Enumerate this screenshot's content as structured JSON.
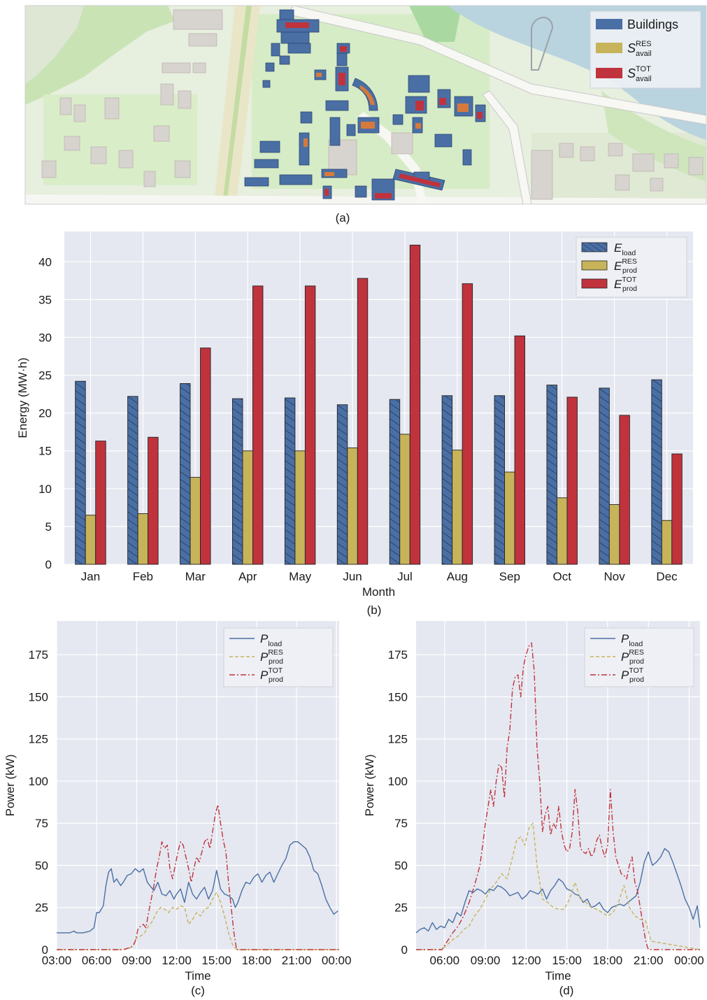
{
  "panels": {
    "a": {
      "caption": "(a)",
      "legend": [
        {
          "label": "Buildings",
          "color": "#4a6fa5"
        },
        {
          "base": "S",
          "sup": "RES",
          "sub": "avail",
          "color": "#c7b35a"
        },
        {
          "base": "S",
          "sup": "TOT",
          "sub": "avail",
          "color": "#c0333d"
        }
      ]
    },
    "b": {
      "caption": "(b)"
    },
    "c": {
      "caption": "(c)"
    },
    "d": {
      "caption": "(d)"
    }
  },
  "chart_data": [
    {
      "id": "b",
      "type": "bar",
      "xlabel": "Month",
      "ylabel": "Energy (MW·h)",
      "ylim": [
        0,
        44
      ],
      "yticks": [
        0,
        5,
        10,
        15,
        20,
        25,
        30,
        35,
        40
      ],
      "categories": [
        "Jan",
        "Feb",
        "Mar",
        "Apr",
        "May",
        "Jun",
        "Jul",
        "Aug",
        "Sep",
        "Oct",
        "Nov",
        "Dec"
      ],
      "grid": true,
      "legend_position": "top-right",
      "series": [
        {
          "name": "E_load",
          "base": "E",
          "sub": "load",
          "sup": "",
          "color": "#4a6fa5",
          "hatch": true,
          "values": [
            24.2,
            22.2,
            23.9,
            21.9,
            22.0,
            21.1,
            21.8,
            22.3,
            22.3,
            23.7,
            23.3,
            24.4
          ]
        },
        {
          "name": "E_prod^RES",
          "base": "E",
          "sub": "prod",
          "sup": "RES",
          "color": "#c7b35a",
          "hatch": false,
          "values": [
            6.5,
            6.7,
            11.5,
            15.0,
            15.0,
            15.4,
            17.2,
            15.1,
            12.2,
            8.8,
            7.9,
            5.8
          ]
        },
        {
          "name": "E_prod^TOT",
          "base": "E",
          "sub": "prod",
          "sup": "TOT",
          "color": "#c0333d",
          "hatch": false,
          "values": [
            16.3,
            16.8,
            28.6,
            36.8,
            36.8,
            37.8,
            42.2,
            37.1,
            30.2,
            22.1,
            19.7,
            14.6
          ]
        }
      ]
    },
    {
      "id": "c",
      "type": "line",
      "xlabel": "Time",
      "ylabel": "Power (kW)",
      "xlim": [
        3,
        24.2
      ],
      "ylim": [
        0,
        195
      ],
      "yticks": [
        0,
        25,
        50,
        75,
        100,
        125,
        150,
        175
      ],
      "xticks": [
        3,
        6,
        9,
        12,
        15,
        18,
        21,
        24
      ],
      "xticklabels": [
        "03:00",
        "06:00",
        "09:00",
        "12:00",
        "15:00",
        "18:00",
        "21:00",
        "00:00"
      ],
      "grid": true,
      "legend_position": "top-right",
      "series": [
        {
          "name": "P_load",
          "base": "P",
          "sub": "load",
          "sup": "",
          "color": "#4a6fa5",
          "style": "solid",
          "x": [
            3,
            3.5,
            4,
            4.3,
            4.5,
            5,
            5.5,
            5.8,
            6,
            6.2,
            6.5,
            6.7,
            6.9,
            7.1,
            7.3,
            7.5,
            7.8,
            8,
            8.3,
            8.6,
            8.9,
            9.2,
            9.5,
            9.8,
            10,
            10.3,
            10.6,
            10.9,
            11.2,
            11.5,
            11.8,
            12,
            12.3,
            12.6,
            12.9,
            13.2,
            13.5,
            13.8,
            14.1,
            14.4,
            14.7,
            15,
            15.3,
            15.6,
            15.9,
            16.2,
            16.4,
            16.6,
            16.9,
            17.2,
            17.5,
            17.8,
            18.1,
            18.4,
            18.7,
            19,
            19.3,
            19.6,
            19.9,
            20.2,
            20.5,
            20.8,
            21.1,
            21.4,
            21.7,
            22,
            22.3,
            22.6,
            22.9,
            23.2,
            23.5,
            23.8,
            24.1
          ],
          "y": [
            10,
            10,
            10,
            11,
            10,
            10,
            11,
            13,
            22,
            22,
            26,
            38,
            46,
            48,
            40,
            42,
            38,
            40,
            44,
            45,
            48,
            46,
            48,
            40,
            38,
            35,
            40,
            33,
            32,
            35,
            30,
            33,
            36,
            28,
            40,
            33,
            30,
            34,
            37,
            30,
            35,
            47,
            36,
            33,
            32,
            30,
            25,
            28,
            35,
            40,
            39,
            43,
            45,
            40,
            44,
            46,
            40,
            45,
            50,
            54,
            62,
            64,
            64,
            62,
            60,
            55,
            47,
            45,
            38,
            30,
            25,
            21,
            23
          ]
        },
        {
          "name": "P_prod^RES",
          "base": "P",
          "sub": "prod",
          "sup": "RES",
          "color": "#c7b35a",
          "style": "dashed",
          "x": [
            3,
            8,
            8.5,
            8.8,
            9,
            9.3,
            9.6,
            9.9,
            10.2,
            10.5,
            10.8,
            11.1,
            11.4,
            11.7,
            12,
            12.3,
            12.6,
            12.9,
            13.2,
            13.5,
            13.8,
            14.1,
            14.4,
            14.7,
            15,
            15.3,
            15.6,
            15.9,
            16.2,
            16.5,
            17,
            24.2
          ],
          "y": [
            0,
            0,
            1,
            3,
            7,
            8,
            10,
            14,
            17,
            22,
            25,
            24,
            22,
            25,
            24,
            26,
            25,
            15,
            18,
            22,
            20,
            24,
            25,
            30,
            34,
            28,
            20,
            10,
            3,
            0,
            0,
            0
          ]
        },
        {
          "name": "P_prod^TOT",
          "base": "P",
          "sub": "prod",
          "sup": "TOT",
          "color": "#c0333d",
          "style": "dashdot",
          "x": [
            3,
            8,
            8.4,
            8.7,
            8.9,
            9.1,
            9.3,
            9.5,
            9.7,
            9.9,
            10.1,
            10.3,
            10.5,
            10.7,
            10.9,
            11.1,
            11.3,
            11.5,
            11.7,
            11.9,
            12.1,
            12.3,
            12.5,
            12.7,
            12.9,
            13.1,
            13.3,
            13.5,
            13.7,
            13.9,
            14.1,
            14.3,
            14.5,
            14.7,
            14.9,
            15.1,
            15.3,
            15.5,
            15.7,
            15.9,
            16.1,
            16.3,
            16.5,
            17,
            24.2
          ],
          "y": [
            0,
            0,
            1,
            2,
            5,
            12,
            14,
            15,
            13,
            22,
            30,
            38,
            48,
            55,
            64,
            60,
            62,
            48,
            42,
            50,
            58,
            64,
            62,
            55,
            48,
            40,
            48,
            55,
            52,
            58,
            64,
            66,
            60,
            70,
            80,
            86,
            75,
            65,
            58,
            40,
            25,
            10,
            0,
            0,
            0
          ]
        }
      ]
    },
    {
      "id": "d",
      "type": "line",
      "xlabel": "Time",
      "ylabel": "Power (kW)",
      "xlim": [
        3.9,
        24.8
      ],
      "ylim": [
        0,
        195
      ],
      "yticks": [
        0,
        25,
        50,
        75,
        100,
        125,
        150,
        175
      ],
      "xticks": [
        6,
        9,
        12,
        15,
        18,
        21,
        24
      ],
      "xticklabels": [
        "06:00",
        "09:00",
        "12:00",
        "15:00",
        "18:00",
        "21:00",
        "00:00"
      ],
      "grid": true,
      "legend_position": "top-right",
      "series": [
        {
          "name": "P_load",
          "base": "P",
          "sub": "load",
          "sup": "",
          "color": "#4a6fa5",
          "style": "solid",
          "x": [
            3.9,
            4.2,
            4.5,
            4.8,
            5.1,
            5.4,
            5.7,
            6,
            6.3,
            6.6,
            6.9,
            7.2,
            7.5,
            7.8,
            8.1,
            8.4,
            8.7,
            9,
            9.3,
            9.6,
            9.9,
            10.2,
            10.5,
            10.8,
            11.1,
            11.4,
            11.7,
            12,
            12.3,
            12.6,
            12.9,
            13.2,
            13.5,
            13.8,
            14.1,
            14.4,
            14.7,
            15,
            15.3,
            15.6,
            15.9,
            16.2,
            16.5,
            16.8,
            17.1,
            17.4,
            17.7,
            18,
            18.3,
            18.6,
            18.9,
            19.2,
            19.5,
            19.8,
            20.1,
            20.4,
            20.7,
            21,
            21.3,
            21.6,
            21.9,
            22.2,
            22.5,
            22.8,
            23.1,
            23.4,
            23.7,
            24,
            24.3,
            24.6,
            24.8
          ],
          "y": [
            10,
            12,
            13,
            11,
            16,
            12,
            14,
            13,
            18,
            16,
            22,
            20,
            28,
            35,
            34,
            36,
            35,
            33,
            36,
            35,
            38,
            37,
            35,
            32,
            33,
            34,
            30,
            32,
            35,
            34,
            33,
            36,
            30,
            35,
            38,
            42,
            40,
            36,
            35,
            33,
            32,
            28,
            30,
            25,
            26,
            28,
            24,
            22,
            25,
            26,
            27,
            26,
            28,
            30,
            32,
            40,
            52,
            58,
            50,
            52,
            55,
            60,
            58,
            52,
            45,
            38,
            30,
            25,
            18,
            26,
            13
          ]
        },
        {
          "name": "P_prod^RES",
          "base": "P",
          "sub": "prod",
          "sup": "RES",
          "color": "#c7b35a",
          "style": "dashed",
          "x": [
            3.9,
            5.8,
            6.2,
            6.6,
            7,
            7.4,
            7.8,
            8.2,
            8.6,
            9,
            9.4,
            9.8,
            10.2,
            10.6,
            11,
            11.3,
            11.6,
            11.9,
            12.2,
            12.5,
            12.8,
            13.2,
            13.6,
            14,
            14.4,
            14.8,
            15.2,
            15.6,
            16,
            16.4,
            16.8,
            17.2,
            17.6,
            18,
            18.4,
            18.8,
            19.2,
            19.6,
            20,
            20.4,
            20.8,
            21.2,
            24.8
          ],
          "y": [
            0,
            0,
            3,
            6,
            8,
            12,
            14,
            20,
            24,
            30,
            36,
            40,
            45,
            42,
            55,
            65,
            67,
            62,
            72,
            75,
            50,
            30,
            28,
            25,
            24,
            24,
            30,
            40,
            30,
            28,
            25,
            24,
            22,
            20,
            22,
            28,
            38,
            25,
            20,
            18,
            17,
            5,
            0
          ]
        },
        {
          "name": "P_prod^TOT",
          "base": "P",
          "sub": "prod",
          "sup": "TOT",
          "color": "#c0333d",
          "style": "dashdot",
          "x": [
            3.9,
            5.8,
            6.2,
            6.6,
            7,
            7.4,
            7.8,
            8.2,
            8.6,
            8.8,
            9,
            9.2,
            9.4,
            9.6,
            9.8,
            10,
            10.2,
            10.4,
            10.6,
            10.8,
            11,
            11.2,
            11.4,
            11.6,
            11.8,
            12,
            12.2,
            12.4,
            12.6,
            12.8,
            13,
            13.2,
            13.4,
            13.6,
            13.8,
            14,
            14.2,
            14.4,
            14.6,
            14.8,
            15,
            15.2,
            15.4,
            15.6,
            15.8,
            16,
            16.2,
            16.4,
            16.6,
            16.8,
            17,
            17.2,
            17.4,
            17.6,
            17.8,
            18,
            18.2,
            18.4,
            18.6,
            18.8,
            19,
            19.2,
            19.4,
            19.6,
            19.8,
            20,
            20.2,
            20.4,
            20.6,
            20.8,
            21,
            21.3,
            24.8
          ],
          "y": [
            0,
            0,
            5,
            10,
            14,
            20,
            28,
            38,
            50,
            62,
            75,
            85,
            95,
            85,
            100,
            110,
            108,
            90,
            120,
            130,
            155,
            162,
            163,
            150,
            168,
            175,
            180,
            182,
            165,
            120,
            100,
            70,
            80,
            85,
            68,
            75,
            72,
            85,
            70,
            62,
            58,
            60,
            70,
            95,
            82,
            60,
            58,
            57,
            60,
            55,
            58,
            65,
            68,
            60,
            55,
            62,
            95,
            70,
            55,
            50,
            45,
            44,
            42,
            50,
            55,
            40,
            35,
            25,
            15,
            5,
            0,
            0,
            0
          ]
        }
      ]
    }
  ]
}
